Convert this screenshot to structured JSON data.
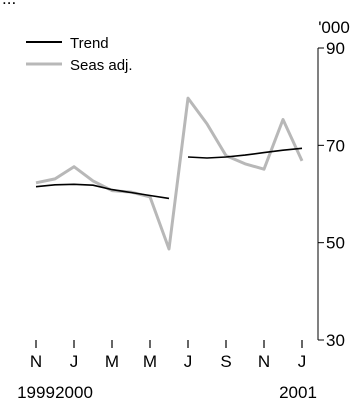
{
  "chart_data": {
    "type": "line",
    "top_text_fragment": "...",
    "y_unit": "'000",
    "y_range": [
      30,
      90
    ],
    "y_ticks": [
      30,
      50,
      70,
      90
    ],
    "y_axis_side": "right",
    "grid": false,
    "legend_position": "top-left",
    "x_ticks": [
      "N",
      "J",
      "M",
      "M",
      "J",
      "S",
      "N",
      "J"
    ],
    "year_labels": [
      "1999",
      "2000",
      "2001"
    ],
    "x_positions": [
      "Nov 1999",
      "Dec 1999",
      "Jan 2000",
      "Feb 2000",
      "Mar 2000",
      "Apr 2000",
      "May 2000",
      "Jun 2000",
      "Jul 2000",
      "Aug 2000",
      "Sep 2000",
      "Oct 2000",
      "Nov 2000",
      "Dec 2000",
      "Jan 2001",
      "Feb 2001"
    ],
    "series": [
      {
        "name": "Trend",
        "color": "#000000",
        "segments": [
          [
            61.5,
            61.9,
            62.0,
            61.8,
            60.9,
            60.3,
            59.7,
            59.1
          ],
          [
            null,
            null,
            null,
            null,
            null,
            null,
            null,
            null,
            67.6,
            67.4,
            67.6,
            68.0,
            68.5,
            69.0,
            69.4
          ]
        ]
      },
      {
        "name": "Seas adj.",
        "color": "#b8b8b8",
        "values": [
          62.3,
          63.1,
          65.6,
          62.7,
          60.7,
          60.4,
          59.4,
          48.7,
          79.7,
          74.4,
          67.9,
          66.2,
          65.1,
          75.3,
          66.8
        ]
      }
    ]
  }
}
